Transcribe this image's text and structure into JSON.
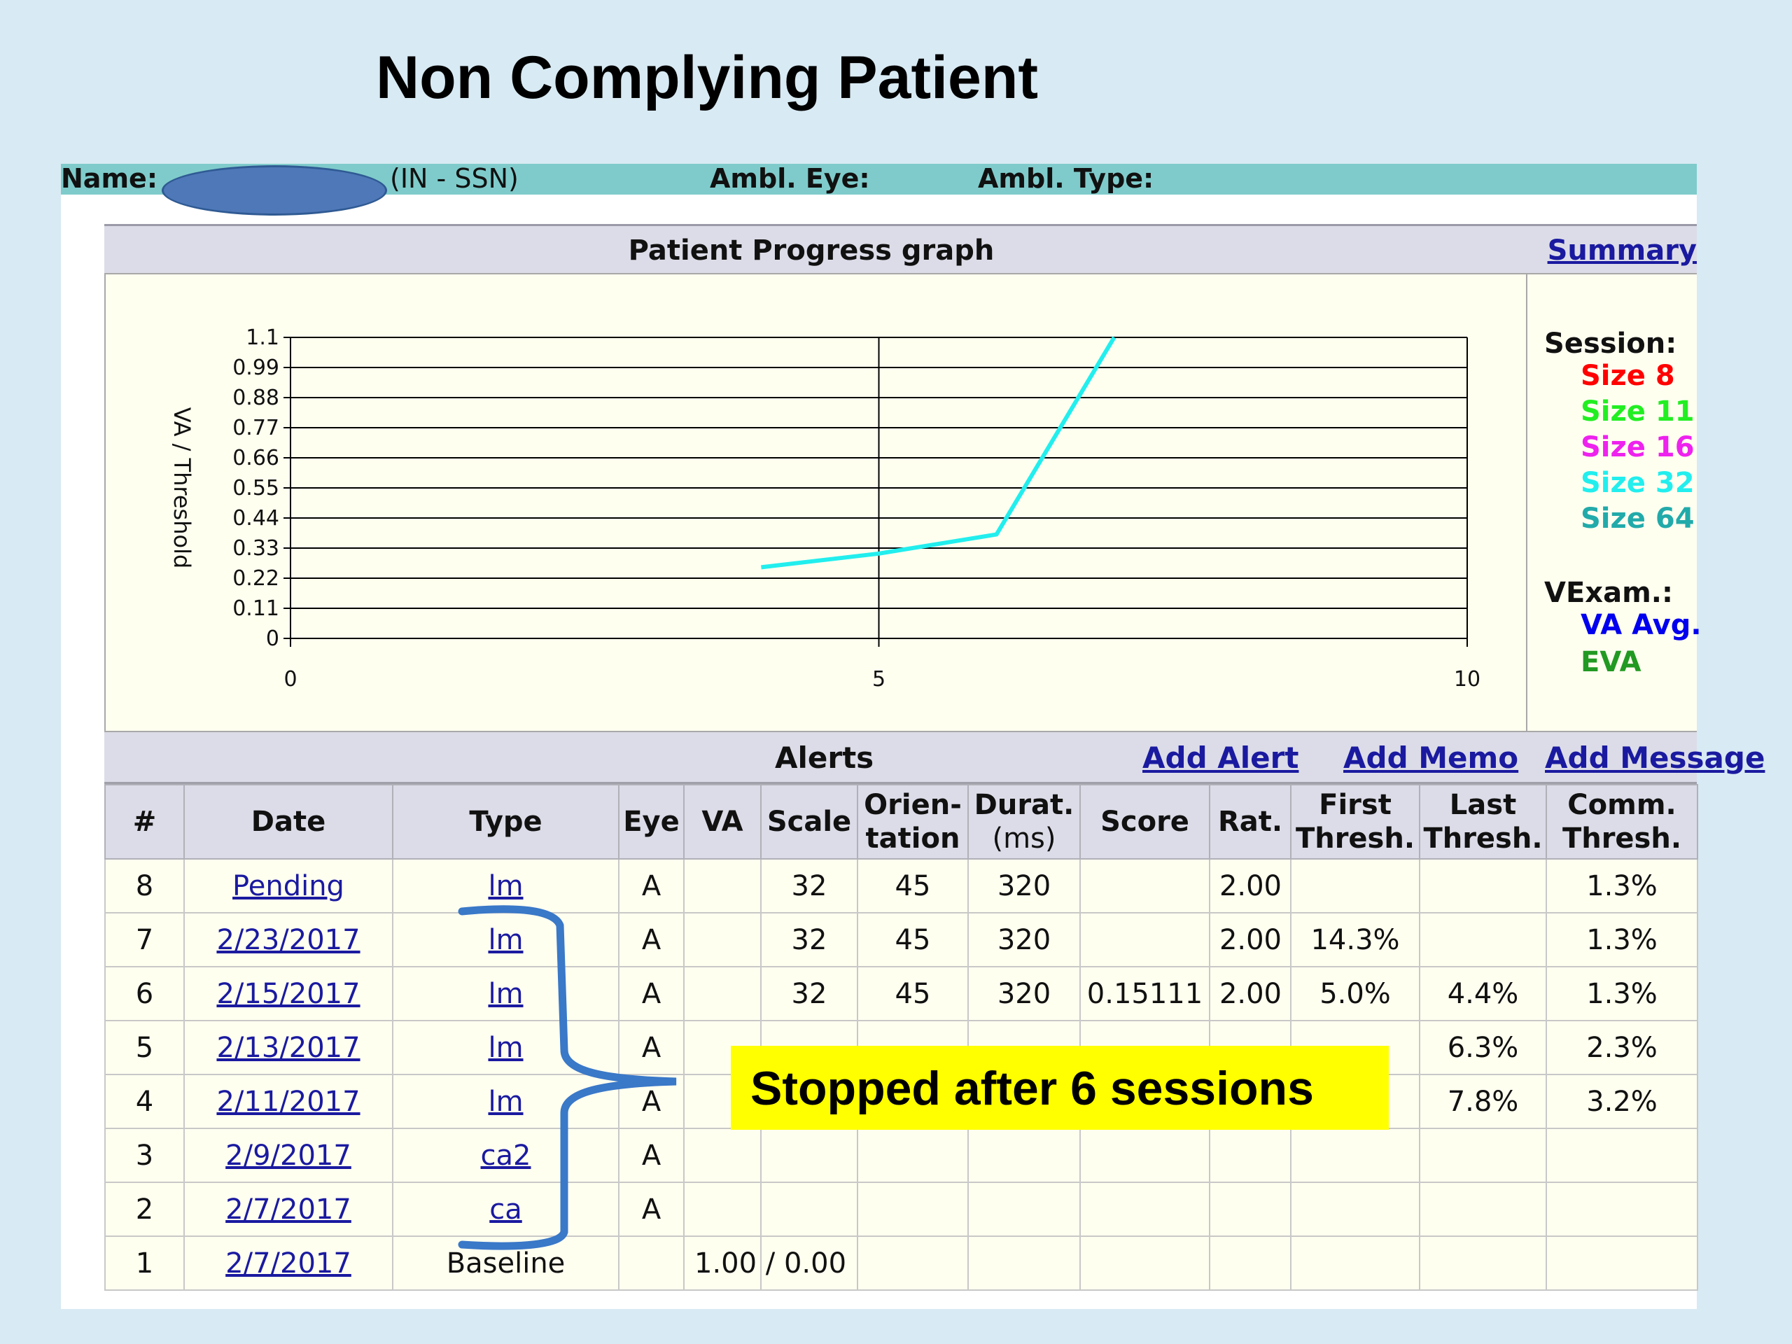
{
  "slide": {
    "title": "Non Complying Patient"
  },
  "header": {
    "name_label": "Name:",
    "id_suffix": "(IN - SSN)",
    "ambl_eye_label": "Ambl. Eye:",
    "ambl_type_label": "Ambl. Type:"
  },
  "graph": {
    "title": "Patient Progress graph",
    "summary_link": "Summary",
    "legend": {
      "session_label": "Session:",
      "sizes": [
        {
          "label": "Size 8",
          "color": "#ff0000"
        },
        {
          "label": "Size 11",
          "color": "#22ee22"
        },
        {
          "label": "Size 16",
          "color": "#ee22ee"
        },
        {
          "label": "Size 32",
          "color": "#22eeee"
        },
        {
          "label": "Size 64",
          "color": "#22aaaa"
        }
      ],
      "vexam_label": "VExam.:",
      "vexam": [
        {
          "label": "VA Avg.",
          "color": "#0000ee"
        },
        {
          "label": "EVA",
          "color": "#229922"
        }
      ]
    }
  },
  "chart_data": {
    "type": "line",
    "ylabel": "VA / Threshold",
    "xlabel": "",
    "xlim": [
      0,
      10
    ],
    "ylim": [
      0,
      1.1
    ],
    "x_ticks": [
      "0",
      "5",
      "10"
    ],
    "y_ticks": [
      "0",
      "0.11",
      "0.22",
      "0.33",
      "0.44",
      "0.55",
      "0.66",
      "0.77",
      "0.88",
      "0.99",
      "1.1"
    ],
    "grid": true,
    "series": [
      {
        "color": "#22eeee",
        "x": [
          4,
          5,
          6,
          7
        ],
        "y": [
          0.26,
          0.31,
          0.38,
          1.1
        ]
      }
    ]
  },
  "alerts": {
    "title": "Alerts",
    "add_alert": "Add Alert",
    "add_memo": "Add Memo",
    "add_message": "Add Message"
  },
  "table": {
    "headers": [
      [
        "#"
      ],
      [
        "Date"
      ],
      [
        "Type"
      ],
      [
        "Eye"
      ],
      [
        "VA"
      ],
      [
        "Scale"
      ],
      [
        "Orien-",
        "tation"
      ],
      [
        "Durat.",
        "(ms)"
      ],
      [
        "Score"
      ],
      [
        "Rat."
      ],
      [
        "First",
        "Thresh."
      ],
      [
        "Last",
        "Thresh."
      ],
      [
        "Comm.",
        "Thresh."
      ]
    ],
    "rows": [
      {
        "num": "8",
        "date": "Pending",
        "type": "lm",
        "eye": "A",
        "va": "",
        "scale": "32",
        "orient": "45",
        "durat": "320",
        "score": "",
        "rat": "2.00",
        "first": "",
        "last": "",
        "comm": "1.3%"
      },
      {
        "num": "7",
        "date": "2/23/2017",
        "type": "lm",
        "eye": "A",
        "va": "",
        "scale": "32",
        "orient": "45",
        "durat": "320",
        "score": "",
        "rat": "2.00",
        "first": "14.3%",
        "last": "",
        "comm": "1.3%"
      },
      {
        "num": "6",
        "date": "2/15/2017",
        "type": "lm",
        "eye": "A",
        "va": "",
        "scale": "32",
        "orient": "45",
        "durat": "320",
        "score": "0.15111",
        "rat": "2.00",
        "first": "5.0%",
        "last": "4.4%",
        "comm": "1.3%"
      },
      {
        "num": "5",
        "date": "2/13/2017",
        "type": "lm",
        "eye": "A",
        "va": "",
        "scale": "",
        "orient": "",
        "durat": "",
        "score": "",
        "rat": "",
        "first": "",
        "last": "6.3%",
        "comm": "2.3%"
      },
      {
        "num": "4",
        "date": "2/11/2017",
        "type": "lm",
        "eye": "A",
        "va": "",
        "scale": "",
        "orient": "",
        "durat": "",
        "score": "",
        "rat": "",
        "first": "",
        "last": "7.8%",
        "comm": "3.2%"
      },
      {
        "num": "3",
        "date": "2/9/2017",
        "type": "ca2",
        "eye": "A",
        "va": "",
        "scale": "",
        "orient": "",
        "durat": "",
        "score": "",
        "rat": "",
        "first": "",
        "last": "",
        "comm": ""
      },
      {
        "num": "2",
        "date": "2/7/2017",
        "type": "ca",
        "eye": "A",
        "va": "",
        "scale": "",
        "orient": "",
        "durat": "",
        "score": "",
        "rat": "",
        "first": "",
        "last": "",
        "comm": ""
      },
      {
        "num": "1",
        "date": "2/7/2017",
        "type": "Baseline",
        "eye": "",
        "va": "1.00  / 0.00",
        "scale": "",
        "orient": "",
        "durat": "",
        "score": "",
        "rat": "",
        "first": "",
        "last": "",
        "comm": ""
      }
    ]
  },
  "annotation": {
    "text": "Stopped after 6 sessions"
  }
}
